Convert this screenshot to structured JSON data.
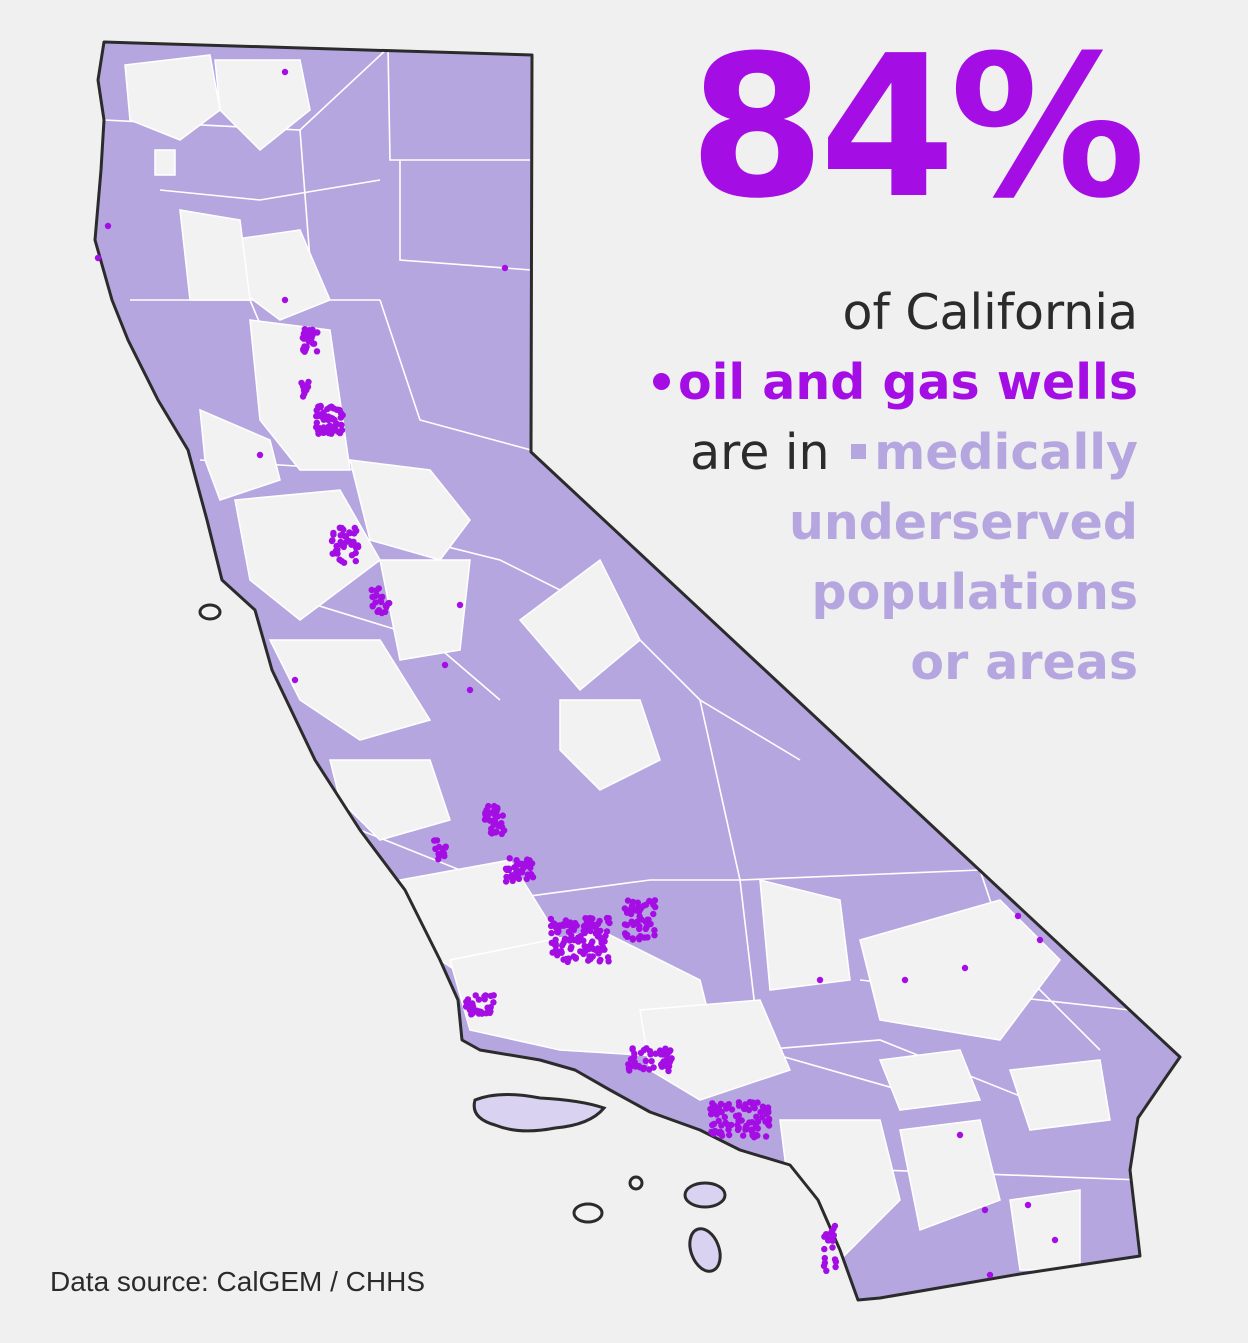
{
  "headline": {
    "percent": "84%"
  },
  "caption": {
    "line1": "of California",
    "line2": "oil and gas wells",
    "line3_prefix": "are in",
    "line3_highlight": "medically",
    "line4": "underserved",
    "line5": "populations",
    "line6": "or areas"
  },
  "legend": {
    "wells_marker": "purple-dot-icon",
    "underserved_marker": "lavender-square-icon"
  },
  "source": {
    "text": "Data source: CalGEM / CHHS"
  },
  "colors": {
    "background": "#f0f0f0",
    "wells": "#a40ee4",
    "underserved": "#b6a6e0",
    "outline": "#2b2b2b",
    "text": "#2b2b2b"
  }
}
